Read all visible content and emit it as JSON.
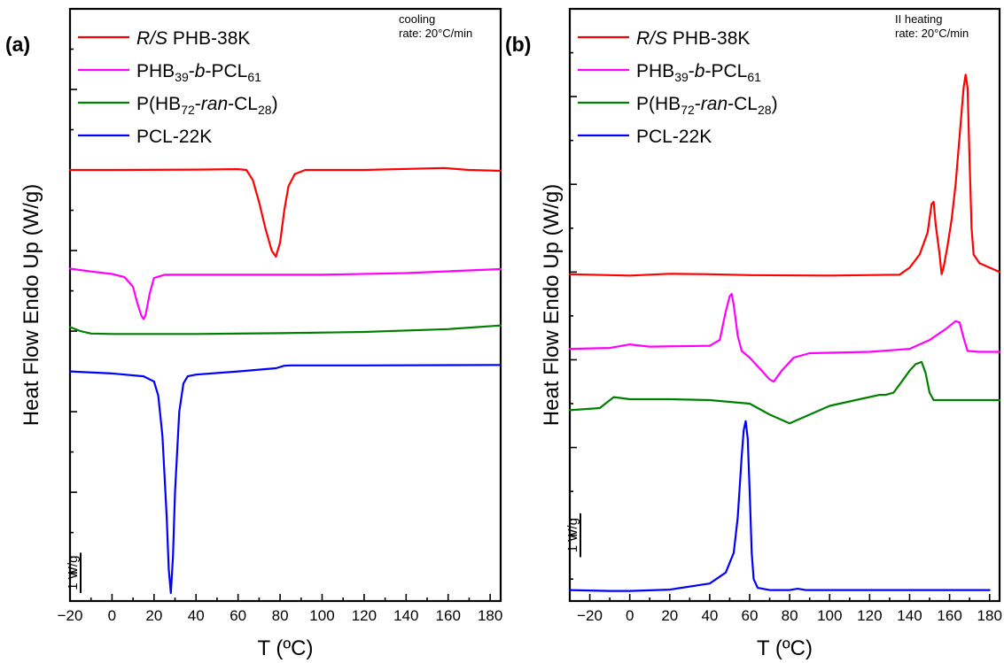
{
  "chart_data": [
    {
      "panel_label": "(a)",
      "type": "line",
      "note": [
        "cooling",
        "rate: 20°C/min"
      ],
      "xlabel": "T (ºC)",
      "ylabel": "Heat Flow Endo Up (W/g)",
      "xlim": [
        -20,
        185
      ],
      "xticks": [
        -20,
        0,
        20,
        40,
        60,
        80,
        100,
        120,
        140,
        160,
        180
      ],
      "y_units": "W/g (1 W/g scale bar; curves vertically offset)",
      "ylim": [
        -10.7,
        4.0
      ],
      "scale_bar": {
        "label": "1 W/g",
        "from": -10.5,
        "to": -9.5
      },
      "legend_position": "top-left",
      "series": [
        {
          "name": "R/S PHB-38K",
          "color": "#ff0000",
          "points": [
            [
              -20,
              0.0
            ],
            [
              0,
              0.0
            ],
            [
              40,
              0.01
            ],
            [
              60,
              0.02
            ],
            [
              64,
              0.0
            ],
            [
              67,
              -0.25
            ],
            [
              70,
              -0.8
            ],
            [
              73,
              -1.45
            ],
            [
              76,
              -2.0
            ],
            [
              78,
              -2.15
            ],
            [
              80,
              -1.8
            ],
            [
              82,
              -1.0
            ],
            [
              84,
              -0.4
            ],
            [
              87,
              -0.1
            ],
            [
              92,
              0.0
            ],
            [
              120,
              0.0
            ],
            [
              158,
              0.05
            ],
            [
              170,
              0.0
            ],
            [
              185,
              -0.02
            ]
          ]
        },
        {
          "name": "PHB39-b-PCL61",
          "color": "#ff00ff",
          "points": [
            [
              -20,
              -2.45
            ],
            [
              -10,
              -2.52
            ],
            [
              0,
              -2.58
            ],
            [
              6,
              -2.66
            ],
            [
              10,
              -2.9
            ],
            [
              12,
              -3.3
            ],
            [
              14,
              -3.62
            ],
            [
              15,
              -3.7
            ],
            [
              16,
              -3.6
            ],
            [
              18,
              -3.05
            ],
            [
              20,
              -2.68
            ],
            [
              25,
              -2.6
            ],
            [
              60,
              -2.6
            ],
            [
              100,
              -2.6
            ],
            [
              140,
              -2.56
            ],
            [
              185,
              -2.46
            ]
          ]
        },
        {
          "name": "P(HB72-ran-CL28)",
          "color": "#008000",
          "points": [
            [
              -20,
              -3.9
            ],
            [
              -15,
              -4.0
            ],
            [
              -10,
              -4.06
            ],
            [
              0,
              -4.07
            ],
            [
              40,
              -4.07
            ],
            [
              80,
              -4.05
            ],
            [
              120,
              -4.02
            ],
            [
              160,
              -3.95
            ],
            [
              185,
              -3.86
            ]
          ]
        },
        {
          "name": "PCL-22K",
          "color": "#0000ff",
          "points": [
            [
              -20,
              -5.0
            ],
            [
              0,
              -5.05
            ],
            [
              15,
              -5.12
            ],
            [
              20,
              -5.25
            ],
            [
              22,
              -5.6
            ],
            [
              24,
              -6.6
            ],
            [
              26,
              -8.6
            ],
            [
              27,
              -9.9
            ],
            [
              28,
              -10.5
            ],
            [
              29,
              -9.6
            ],
            [
              30,
              -8.0
            ],
            [
              32,
              -6.0
            ],
            [
              34,
              -5.3
            ],
            [
              36,
              -5.12
            ],
            [
              40,
              -5.08
            ],
            [
              60,
              -5.0
            ],
            [
              78,
              -4.92
            ],
            [
              82,
              -4.86
            ],
            [
              85,
              -4.85
            ],
            [
              120,
              -4.85
            ],
            [
              185,
              -4.84
            ]
          ]
        }
      ]
    },
    {
      "panel_label": "(b)",
      "type": "line",
      "note": [
        "II heating",
        "rate: 20°C/min"
      ],
      "xlabel": "T (ºC)",
      "ylabel": "Heat Flow Endo Up (W/g)",
      "xlim": [
        -30,
        185
      ],
      "xticks": [
        -20,
        0,
        20,
        40,
        60,
        80,
        100,
        120,
        140,
        160,
        180
      ],
      "y_units": "W/g (1 W/g scale bar; curves vertically offset)",
      "ylim": [
        -11.5,
        2.0
      ],
      "scale_bar": {
        "label": "1 W/g",
        "from": -10.5,
        "to": -9.5
      },
      "legend_position": "top-left",
      "series": [
        {
          "name": "R/S PHB-38K",
          "color": "#ff0000",
          "points": [
            [
              -30,
              -4.05
            ],
            [
              -10,
              -4.07
            ],
            [
              0,
              -4.08
            ],
            [
              20,
              -4.04
            ],
            [
              40,
              -4.05
            ],
            [
              60,
              -4.07
            ],
            [
              100,
              -4.08
            ],
            [
              135,
              -4.06
            ],
            [
              140,
              -3.9
            ],
            [
              145,
              -3.6
            ],
            [
              149,
              -3.1
            ],
            [
              151,
              -2.45
            ],
            [
              152,
              -2.4
            ],
            [
              153,
              -2.9
            ],
            [
              155,
              -3.6
            ],
            [
              156,
              -4.05
            ],
            [
              157,
              -3.9
            ],
            [
              159,
              -3.4
            ],
            [
              161,
              -2.8
            ],
            [
              163,
              -2.0
            ],
            [
              165,
              -0.9
            ],
            [
              167,
              0.2
            ],
            [
              168,
              0.5
            ],
            [
              169,
              0.2
            ],
            [
              170,
              -1.5
            ],
            [
              171,
              -3.0
            ],
            [
              172,
              -3.6
            ],
            [
              175,
              -3.8
            ],
            [
              185,
              -4.0
            ]
          ]
        },
        {
          "name": "PHB39-b-PCL61",
          "color": "#ff00ff",
          "points": [
            [
              -30,
              -5.75
            ],
            [
              -10,
              -5.73
            ],
            [
              0,
              -5.65
            ],
            [
              10,
              -5.7
            ],
            [
              40,
              -5.68
            ],
            [
              45,
              -5.55
            ],
            [
              48,
              -4.9
            ],
            [
              50,
              -4.55
            ],
            [
              51,
              -4.5
            ],
            [
              52,
              -4.75
            ],
            [
              54,
              -5.45
            ],
            [
              56,
              -5.8
            ],
            [
              60,
              -5.95
            ],
            [
              66,
              -6.25
            ],
            [
              70,
              -6.45
            ],
            [
              72,
              -6.5
            ],
            [
              76,
              -6.25
            ],
            [
              82,
              -5.95
            ],
            [
              90,
              -5.85
            ],
            [
              120,
              -5.82
            ],
            [
              140,
              -5.75
            ],
            [
              150,
              -5.55
            ],
            [
              158,
              -5.3
            ],
            [
              163,
              -5.12
            ],
            [
              165,
              -5.15
            ],
            [
              167,
              -5.5
            ],
            [
              169,
              -5.8
            ],
            [
              175,
              -5.82
            ],
            [
              185,
              -5.82
            ]
          ]
        },
        {
          "name": "P(HB72-ran-CL28)",
          "color": "#008000",
          "points": [
            [
              -30,
              -7.15
            ],
            [
              -15,
              -7.1
            ],
            [
              -8,
              -6.85
            ],
            [
              0,
              -6.9
            ],
            [
              20,
              -6.9
            ],
            [
              40,
              -6.92
            ],
            [
              60,
              -7.0
            ],
            [
              70,
              -7.25
            ],
            [
              80,
              -7.45
            ],
            [
              90,
              -7.25
            ],
            [
              100,
              -7.05
            ],
            [
              115,
              -6.9
            ],
            [
              125,
              -6.8
            ],
            [
              128,
              -6.8
            ],
            [
              132,
              -6.75
            ],
            [
              136,
              -6.5
            ],
            [
              140,
              -6.25
            ],
            [
              143,
              -6.1
            ],
            [
              146,
              -6.05
            ],
            [
              148,
              -6.3
            ],
            [
              150,
              -6.75
            ],
            [
              152,
              -6.92
            ],
            [
              160,
              -6.92
            ],
            [
              185,
              -6.92
            ]
          ]
        },
        {
          "name": "PCL-22K",
          "color": "#0000ff",
          "points": [
            [
              -30,
              -11.25
            ],
            [
              -10,
              -11.27
            ],
            [
              0,
              -11.27
            ],
            [
              20,
              -11.24
            ],
            [
              40,
              -11.1
            ],
            [
              48,
              -10.85
            ],
            [
              52,
              -10.4
            ],
            [
              54,
              -9.6
            ],
            [
              56,
              -8.2
            ],
            [
              57,
              -7.6
            ],
            [
              58,
              -7.4
            ],
            [
              59,
              -7.8
            ],
            [
              60,
              -9.0
            ],
            [
              61,
              -10.4
            ],
            [
              62,
              -11.0
            ],
            [
              64,
              -11.2
            ],
            [
              70,
              -11.25
            ],
            [
              80,
              -11.25
            ],
            [
              84,
              -11.22
            ],
            [
              88,
              -11.25
            ],
            [
              180,
              -11.25
            ]
          ]
        }
      ]
    }
  ]
}
